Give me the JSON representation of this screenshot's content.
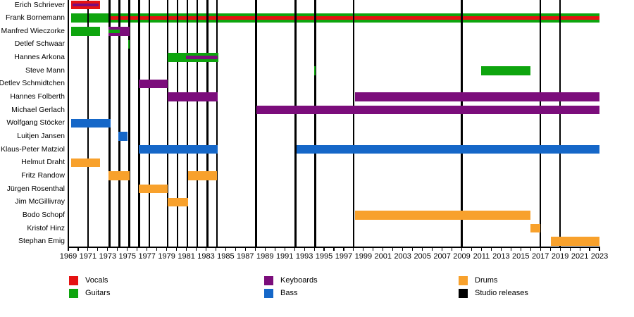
{
  "chart_data": {
    "type": "bar",
    "subtype": "band-member-timeline-gantt",
    "title": "",
    "x_axis": {
      "min": 1969,
      "max": 2023,
      "tick_interval": 1,
      "label_interval": 2,
      "tick_labels": [
        "1969",
        "1971",
        "1973",
        "1975",
        "1977",
        "1979",
        "1981",
        "1983",
        "1985",
        "1987",
        "1989",
        "1991",
        "1993",
        "1995",
        "1997",
        "1999",
        "2001",
        "2003",
        "2005",
        "2007",
        "2009",
        "2011",
        "2013",
        "2015",
        "2017",
        "2019",
        "2021",
        "2023"
      ]
    },
    "colors": {
      "vocals": "#e51212",
      "guitars": "#0ea50e",
      "keyboards": "#7b0d7b",
      "bass": "#1567c8",
      "drums": "#f8a12c",
      "studio_releases": "#000000"
    },
    "legend": {
      "columns": [
        {
          "items": [
            {
              "label": "Vocals",
              "key": "vocals"
            },
            {
              "label": "Guitars",
              "key": "guitars"
            }
          ]
        },
        {
          "items": [
            {
              "label": "Keyboards",
              "key": "keyboards"
            },
            {
              "label": "Bass",
              "key": "bass"
            }
          ]
        },
        {
          "items": [
            {
              "label": "Drums",
              "key": "drums"
            },
            {
              "label": "Studio releases",
              "key": "studio_releases"
            }
          ]
        }
      ]
    },
    "studio_releases": [
      1971.0,
      1973.2,
      1974.2,
      1975.2,
      1976.2,
      1977.25,
      1979.1,
      1980.1,
      1981.1,
      1982.1,
      1983.15,
      1984.1,
      1988.1,
      1992.1,
      1994.1,
      1998.0,
      2009.0,
      2017.0,
      2019.0
    ],
    "members": [
      {
        "name": "Erich Schriever",
        "bars": [
          {
            "instrument": "vocals",
            "from": 1969.3,
            "to": 1972.2,
            "overlay": {
              "instrument": "keyboards",
              "from": 1969.4,
              "to": 1972.1
            }
          }
        ]
      },
      {
        "name": "Frank Bornemann",
        "lines_in_front": true,
        "bars": [
          {
            "instrument": "guitars",
            "from": 1969.3,
            "to": 2023.0,
            "overlay": {
              "instrument": "vocals",
              "from": 1973.05,
              "to": 2023.0
            }
          }
        ]
      },
      {
        "name": "Manfred Wieczorke",
        "bars": [
          {
            "instrument": "guitars",
            "from": 1969.3,
            "to": 1972.2
          },
          {
            "instrument": "keyboards",
            "from": 1973.05,
            "to": 1975.2,
            "overlay": {
              "instrument": "guitars",
              "from": 1973.05,
              "to": 1974.25
            }
          }
        ]
      },
      {
        "name": "Detlef Schwaar",
        "bars": [
          {
            "instrument": "guitars",
            "from": 1975.05,
            "to": 1975.2
          }
        ]
      },
      {
        "name": "Hannes Arkona",
        "bars": [
          {
            "instrument": "guitars",
            "from": 1979.1,
            "to": 1984.25,
            "overlay": {
              "instrument": "keyboards",
              "from": 1980.95,
              "to": 1984.2
            }
          }
        ]
      },
      {
        "name": "Steve Mann",
        "bars": [
          {
            "instrument": "guitars",
            "from": 1994.0,
            "to": 1994.15
          },
          {
            "instrument": "guitars",
            "from": 2011.0,
            "to": 2016.0
          }
        ]
      },
      {
        "name": "Detlev Schmidtchen",
        "bars": [
          {
            "instrument": "keyboards",
            "from": 1976.15,
            "to": 1979.1
          }
        ]
      },
      {
        "name": "Hannes Folberth",
        "bars": [
          {
            "instrument": "keyboards",
            "from": 1979.1,
            "to": 1984.2
          },
          {
            "instrument": "keyboards",
            "from": 1998.15,
            "to": 2023.0
          }
        ]
      },
      {
        "name": "Michael Gerlach",
        "bars": [
          {
            "instrument": "keyboards",
            "from": 1988.15,
            "to": 2023.0
          }
        ]
      },
      {
        "name": "Wolfgang Stöcker",
        "bars": [
          {
            "instrument": "bass",
            "from": 1969.3,
            "to": 1973.3
          }
        ]
      },
      {
        "name": "Luitjen Jansen",
        "bars": [
          {
            "instrument": "bass",
            "from": 1974.1,
            "to": 1975.05
          }
        ]
      },
      {
        "name": "Klaus-Peter Matziol",
        "bars": [
          {
            "instrument": "bass",
            "from": 1976.15,
            "to": 1984.2
          },
          {
            "instrument": "bass",
            "from": 1992.2,
            "to": 2023.0
          }
        ]
      },
      {
        "name": "Helmut Draht",
        "bars": [
          {
            "instrument": "drums",
            "from": 1969.3,
            "to": 1972.2
          }
        ]
      },
      {
        "name": "Fritz Randow",
        "bars": [
          {
            "instrument": "drums",
            "from": 1973.05,
            "to": 1975.2
          },
          {
            "instrument": "drums",
            "from": 1981.2,
            "to": 1984.1
          }
        ]
      },
      {
        "name": "Jürgen Rosenthal",
        "bars": [
          {
            "instrument": "drums",
            "from": 1976.15,
            "to": 1979.1
          }
        ]
      },
      {
        "name": "Jim McGillivray",
        "bars": [
          {
            "instrument": "drums",
            "from": 1979.1,
            "to": 1981.15
          }
        ]
      },
      {
        "name": "Bodo Schopf",
        "bars": [
          {
            "instrument": "drums",
            "from": 1998.15,
            "to": 2016.0
          }
        ]
      },
      {
        "name": "Kristof Hinz",
        "bars": [
          {
            "instrument": "drums",
            "from": 2016.0,
            "to": 2017.0
          }
        ]
      },
      {
        "name": "Stephan Emig",
        "bars": [
          {
            "instrument": "drums",
            "from": 2018.05,
            "to": 2023.0
          }
        ]
      }
    ]
  }
}
